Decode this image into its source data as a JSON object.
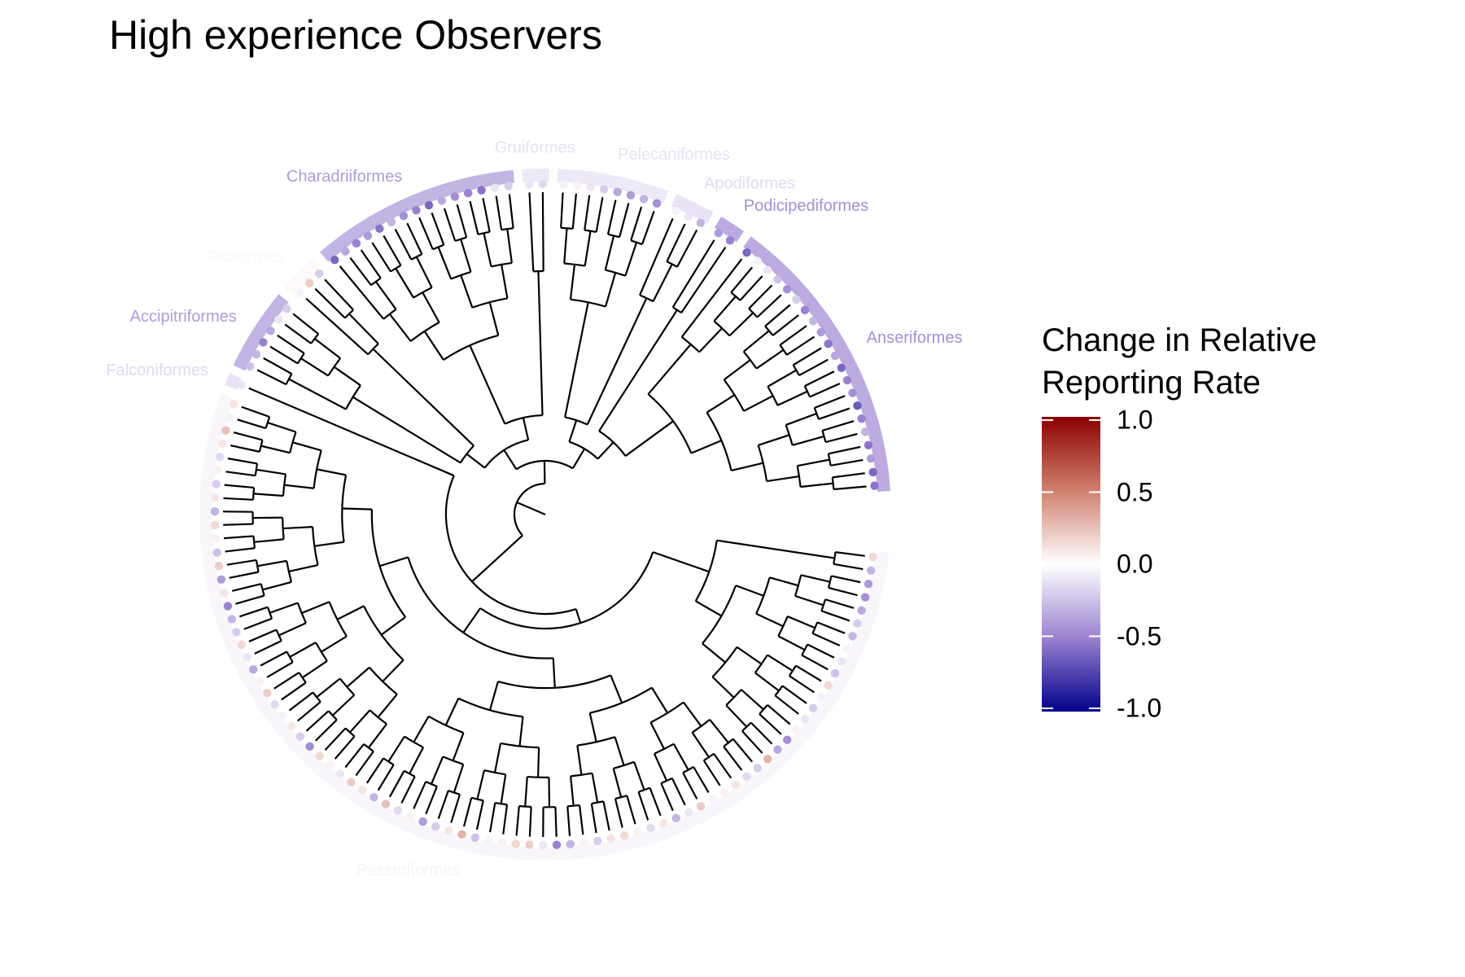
{
  "title": "High experience Observers",
  "legend": {
    "title_line1": "Change in Relative",
    "title_line2": "Reporting Rate",
    "ticks": [
      "1.0",
      "0.5",
      "0.0",
      "-0.5",
      "-1.0"
    ],
    "tick_values": [
      1.0,
      0.5,
      0.0,
      -0.5,
      -1.0
    ],
    "scale_colors": {
      "low": "#00008b",
      "mid": "#ffffff",
      "high": "#8b0000"
    },
    "scale_range": [
      -1.0,
      1.0
    ]
  },
  "tree": {
    "layout": "circular",
    "orders": [
      {
        "name": "Anseriformes",
        "value": -0.45,
        "tips": [
          -0.55,
          -0.6,
          -0.4,
          -0.55,
          -0.3,
          -0.5,
          -0.65,
          -0.45,
          -0.5,
          -0.6,
          -0.35,
          -0.55,
          -0.4,
          -0.3,
          -0.5,
          -0.2,
          -0.45,
          -0.25,
          -0.1,
          -0.05,
          -0.6
        ]
      },
      {
        "name": "Podicipediformes",
        "value": -0.45,
        "tips": [
          -0.5,
          -0.4
        ]
      },
      {
        "name": "Apodiformes",
        "value": -0.15,
        "tips": [
          -0.3,
          -0.1,
          -0.05
        ]
      },
      {
        "name": "Pelecaniformes",
        "value": -0.12,
        "tips": [
          -0.45,
          -0.3,
          -0.4,
          -0.35,
          -0.2,
          -0.1,
          0.05,
          -0.05
        ]
      },
      {
        "name": "Gruiformes",
        "value": -0.12,
        "tips": [
          -0.15,
          -0.1
        ]
      },
      {
        "name": "Charadriiformes",
        "value": -0.4,
        "tips": [
          -0.2,
          -0.1,
          -0.55,
          -0.5,
          -0.45,
          -0.35,
          -0.6,
          -0.5,
          -0.45,
          -0.3,
          -0.55,
          -0.4,
          -0.5,
          -0.35,
          -0.6
        ]
      },
      {
        "name": "Piciformes",
        "value": 0.03,
        "tips": [
          -0.2,
          0.2,
          -0.05
        ]
      },
      {
        "name": "Accipitriformes",
        "value": -0.4,
        "tips": [
          -0.2,
          -0.1,
          -0.35,
          -0.5,
          -0.3,
          -0.25
        ]
      },
      {
        "name": "Falconiformes",
        "value": -0.15,
        "tips": [
          -0.1
        ]
      },
      {
        "name": "Passeriformes",
        "value": -0.05,
        "tips": [
          0.1,
          -0.05,
          0.25,
          0.1,
          -0.15,
          0.05,
          -0.2,
          0.1,
          -0.3,
          0.15,
          0.05,
          -0.25,
          0.2,
          -0.4,
          0.1,
          -0.5,
          -0.3,
          -0.2,
          0.15,
          -0.1,
          -0.35,
          0.05,
          0.2,
          -0.15,
          -0.05,
          0.1,
          -0.2,
          -0.45,
          0.15,
          0.05,
          -0.1,
          0.2,
          0.1,
          -0.3,
          0.25,
          -0.15,
          0.05,
          -0.4,
          -0.2,
          0.1,
          0.3,
          -0.25,
          -0.05,
          0.05,
          0.15,
          0.2,
          -0.1,
          -0.5,
          -0.3,
          0.05,
          -0.2,
          0.1,
          0.15,
          0.05,
          -0.15,
          0.1,
          -0.3,
          -0.1,
          0.2,
          -0.05,
          0.05,
          0.1,
          -0.15,
          -0.2,
          0.3,
          -0.35,
          -0.45,
          0.05,
          -0.1,
          -0.2,
          -0.05,
          0.15,
          -0.25,
          -0.1,
          0.05,
          -0.3,
          -0.2,
          -0.35,
          -0.45,
          -0.4,
          -0.3,
          0.15
        ]
      }
    ]
  }
}
